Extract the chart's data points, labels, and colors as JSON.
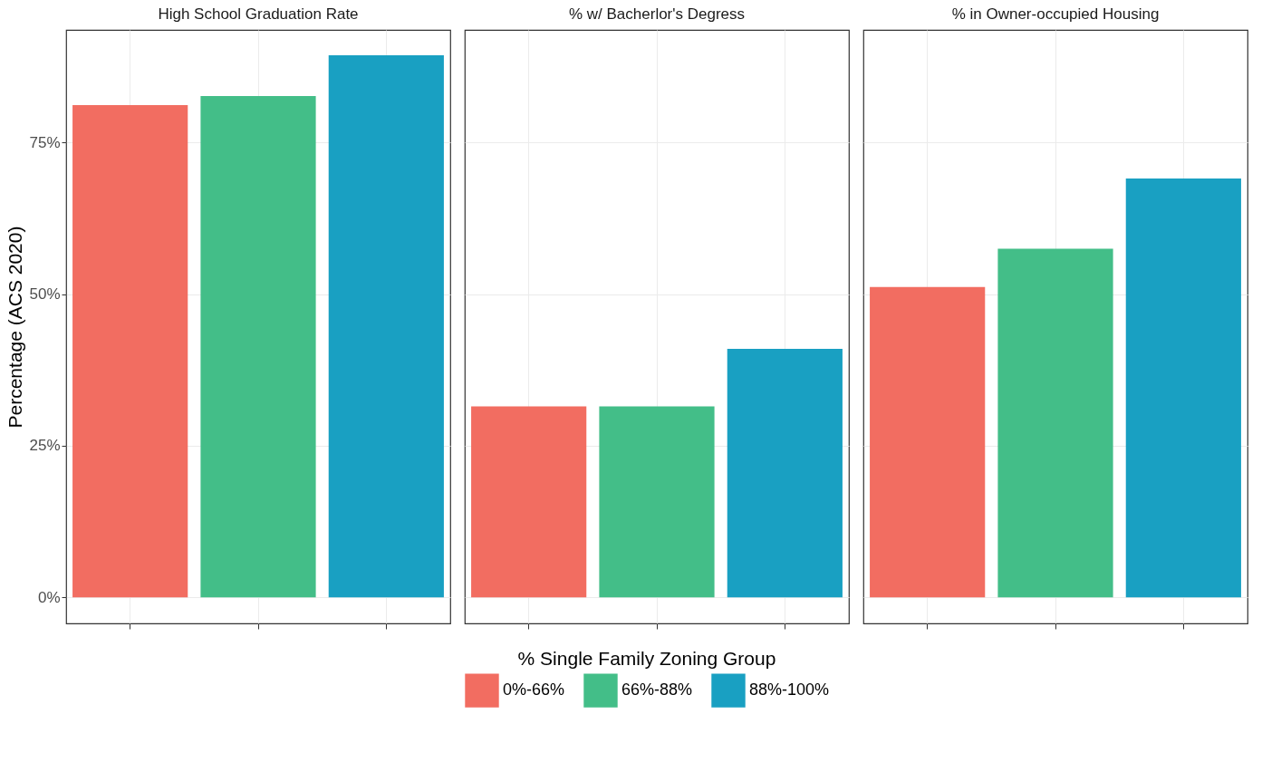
{
  "chart_data": {
    "type": "bar",
    "categories": [
      "High School Graduation Rate",
      "% w/ Bacherlor's Degress",
      "% in Owner-occupied Housing"
    ],
    "ylabel": "Percentage (ACS 2020)",
    "series": [
      {
        "name": "0%-66%",
        "color": "#f26d61",
        "values": [
          81.2,
          31.5,
          51.2
        ]
      },
      {
        "name": "66%-88%",
        "color": "#43be88",
        "values": [
          82.7,
          31.5,
          57.5
        ]
      },
      {
        "name": "88%-100%",
        "color": "#19a0c2",
        "values": [
          89.4,
          41.0,
          69.1
        ]
      }
    ],
    "ylim": [
      -4.3,
      93.6
    ],
    "yticks": [
      {
        "value": 0,
        "label": "0%"
      },
      {
        "value": 25,
        "label": "25%"
      },
      {
        "value": 50,
        "label": "50%"
      },
      {
        "value": 75,
        "label": "75%"
      }
    ],
    "grid": true,
    "legend": "bottom",
    "legend_title": "% Single Family Zoning Group"
  }
}
